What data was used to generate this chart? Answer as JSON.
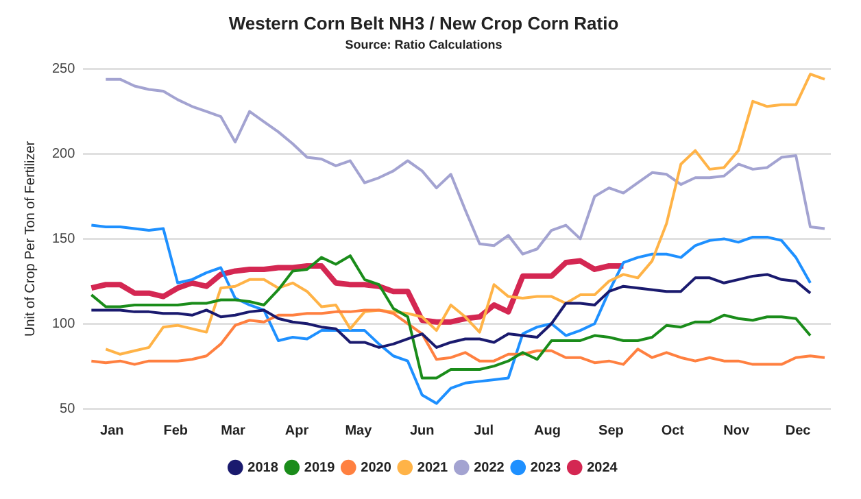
{
  "chart_data": {
    "type": "line",
    "title": "Western Corn Belt NH3 / New Crop Corn Ratio",
    "subtitle": "Source: Ratio Calculations",
    "ylabel": "Unit of Crop Per Ton of Fertilizer",
    "x": [
      "--01-05",
      "--01-12",
      "--01-19",
      "--01-26",
      "--02-02",
      "--02-09",
      "--02-16",
      "--02-23",
      "--03-02",
      "--03-09",
      "--03-16",
      "--03-23",
      "--03-30",
      "--04-06",
      "--04-13",
      "--04-20",
      "--04-27",
      "--05-04",
      "--05-11",
      "--05-18",
      "--05-25",
      "--06-01",
      "--06-08",
      "--06-15",
      "--06-22",
      "--06-29",
      "--07-06",
      "--07-13",
      "--07-20",
      "--07-27",
      "--08-03",
      "--08-10",
      "--08-17",
      "--08-24",
      "--08-31",
      "--09-07",
      "--09-14",
      "--09-21",
      "--09-28",
      "--10-05",
      "--10-12",
      "--10-19",
      "--10-26",
      "--11-02",
      "--11-09",
      "--11-16",
      "--11-23",
      "--11-30",
      "--12-07",
      "--12-14",
      "--12-21",
      "--12-28"
    ],
    "xlim": [
      "--01-01",
      "--12-31"
    ],
    "xticks": [
      {
        "value": "--01-15",
        "label": "Jan"
      },
      {
        "value": "--02-15",
        "label": "Feb"
      },
      {
        "value": "--03-15",
        "label": "Mar"
      },
      {
        "value": "--04-15",
        "label": "Apr"
      },
      {
        "value": "--05-15",
        "label": "May"
      },
      {
        "value": "--06-15",
        "label": "Jun"
      },
      {
        "value": "--07-15",
        "label": "Jul"
      },
      {
        "value": "--08-15",
        "label": "Aug"
      },
      {
        "value": "--09-15",
        "label": "Sep"
      },
      {
        "value": "--10-15",
        "label": "Oct"
      },
      {
        "value": "--11-15",
        "label": "Nov"
      },
      {
        "value": "--12-15",
        "label": "Dec"
      }
    ],
    "ylim": [
      50,
      250
    ],
    "yticks": [
      50,
      100,
      150,
      200,
      250
    ],
    "grid": "y",
    "legend": "bottom",
    "marker": "none",
    "line_style": "solid",
    "series": [
      {
        "name": "2018",
        "color": "#1a1a6e",
        "values": [
          108,
          108,
          108,
          107,
          107,
          106,
          106,
          105,
          108,
          104,
          105,
          107,
          108,
          103,
          101,
          100,
          98,
          97,
          89,
          89,
          86,
          88,
          91,
          94,
          86,
          89,
          91,
          91,
          89,
          94,
          93,
          92,
          100,
          112,
          112,
          111,
          119,
          122,
          121,
          120,
          119,
          119,
          127,
          127,
          124,
          126,
          128,
          129,
          126,
          125,
          118,
          null
        ]
      },
      {
        "name": "2019",
        "color": "#1a8c1a",
        "values": [
          117,
          110,
          110,
          111,
          111,
          111,
          111,
          112,
          112,
          114,
          114,
          113,
          111,
          120,
          131,
          132,
          139,
          135,
          140,
          126,
          123,
          109,
          104,
          68,
          68,
          73,
          73,
          73,
          75,
          78,
          83,
          79,
          90,
          90,
          90,
          93,
          92,
          90,
          90,
          92,
          99,
          98,
          101,
          101,
          105,
          103,
          102,
          104,
          104,
          103,
          93,
          null
        ]
      },
      {
        "name": "2020",
        "color": "#ff8040",
        "values": [
          78,
          77,
          78,
          76,
          78,
          78,
          78,
          79,
          81,
          88,
          99,
          102,
          101,
          105,
          105,
          106,
          106,
          107,
          107,
          108,
          108,
          106,
          100,
          94,
          79,
          80,
          83,
          78,
          78,
          82,
          82,
          84,
          84,
          80,
          80,
          77,
          78,
          76,
          85,
          80,
          83,
          80,
          78,
          80,
          78,
          78,
          76,
          76,
          76,
          80,
          81,
          80
        ]
      },
      {
        "name": "2021",
        "color": "#ffb347",
        "values": [
          null,
          85,
          82,
          84,
          86,
          98,
          99,
          97,
          95,
          121,
          122,
          126,
          126,
          121,
          124,
          119,
          110,
          111,
          97,
          107,
          108,
          107,
          106,
          104,
          96,
          111,
          104,
          95,
          123,
          116,
          115,
          116,
          116,
          112,
          117,
          117,
          125,
          129,
          127,
          137,
          159,
          194,
          202,
          191,
          192,
          202,
          231,
          228,
          229,
          229,
          247,
          244
        ]
      },
      {
        "name": "2022",
        "color": "#a3a3d1",
        "values": [
          null,
          244,
          244,
          240,
          238,
          237,
          232,
          228,
          225,
          222,
          207,
          225,
          219,
          213,
          206,
          198,
          197,
          193,
          196,
          183,
          186,
          190,
          196,
          190,
          180,
          188,
          167,
          147,
          146,
          152,
          141,
          144,
          155,
          158,
          150,
          175,
          180,
          177,
          183,
          189,
          188,
          182,
          186,
          186,
          187,
          194,
          191,
          192,
          198,
          199,
          157,
          156
        ]
      },
      {
        "name": "2023",
        "color": "#1e90ff",
        "values": [
          158,
          157,
          157,
          156,
          155,
          156,
          124,
          126,
          130,
          133,
          115,
          111,
          108,
          90,
          92,
          91,
          96,
          96,
          96,
          96,
          88,
          81,
          78,
          58,
          53,
          62,
          65,
          66,
          67,
          68,
          94,
          98,
          100,
          93,
          96,
          100,
          119,
          136,
          139,
          141,
          141,
          139,
          146,
          149,
          150,
          148,
          151,
          151,
          149,
          139,
          124,
          null
        ]
      },
      {
        "name": "2024",
        "color": "#d42752",
        "values": [
          121,
          123,
          123,
          118,
          118,
          116,
          121,
          124,
          122,
          129,
          131,
          132,
          132,
          133,
          133,
          134,
          134,
          124,
          123,
          123,
          122,
          119,
          119,
          102,
          101,
          101,
          103,
          104,
          111,
          107,
          128,
          128,
          128,
          136,
          137,
          132,
          134,
          134,
          null,
          null,
          null,
          null,
          null,
          null,
          null,
          null,
          null,
          null,
          null,
          null,
          null,
          null
        ]
      }
    ]
  }
}
